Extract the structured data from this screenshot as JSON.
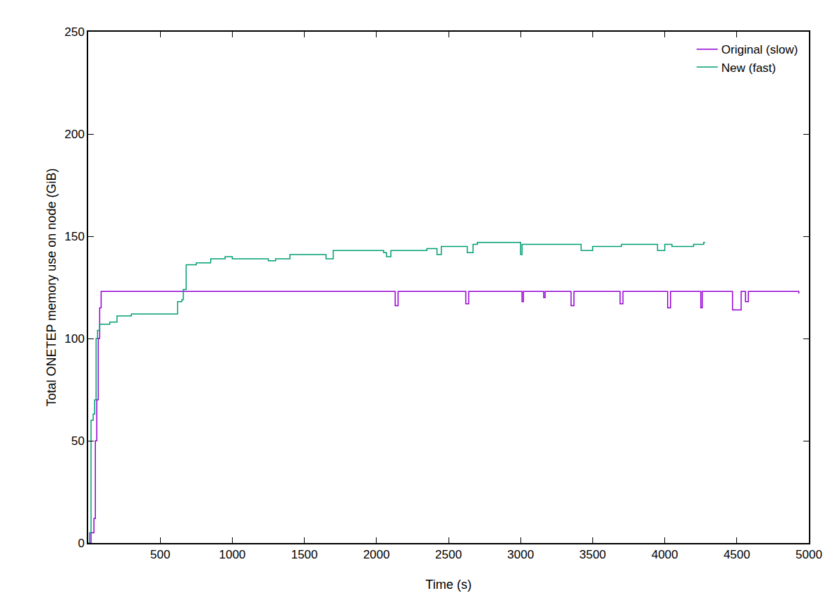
{
  "chart_data": {
    "type": "line",
    "x_label": "Time (s)",
    "y_label": "Total ONETEP memory use on node (GiB)",
    "xlim": [
      0,
      5000
    ],
    "xticks": [
      500,
      1000,
      1500,
      2000,
      2500,
      3000,
      3500,
      4000,
      4500,
      5000
    ],
    "ylim": [
      0,
      250
    ],
    "yticks": [
      0,
      50,
      100,
      150,
      200,
      250
    ],
    "grid": false,
    "legend": "top-right",
    "line_style": "steps",
    "series": [
      {
        "name": "Original (slow)",
        "color": "#9400d3",
        "x": [
          0,
          20,
          40,
          50,
          60,
          70,
          80,
          90,
          2120,
          2130,
          2150,
          2620,
          2640,
          3010,
          3020,
          3160,
          3170,
          3350,
          3370,
          3690,
          3710,
          4020,
          4040,
          4250,
          4260,
          4470,
          4530,
          4560,
          4580,
          4930
        ],
        "values": [
          0,
          5,
          12,
          50,
          70,
          100,
          115,
          123,
          123,
          116,
          123,
          117,
          123,
          118,
          123,
          120,
          123,
          116,
          123,
          117,
          123,
          115,
          123,
          115,
          123,
          114,
          123,
          118,
          123,
          122
        ]
      },
      {
        "name": "New (fast)",
        "color": "#009e73",
        "x": [
          0,
          10,
          20,
          35,
          45,
          55,
          65,
          80,
          150,
          200,
          300,
          600,
          620,
          650,
          660,
          680,
          750,
          850,
          950,
          1000,
          1250,
          1300,
          1400,
          1600,
          1650,
          1700,
          2050,
          2070,
          2100,
          2350,
          2420,
          2450,
          2600,
          2630,
          2670,
          2700,
          2950,
          3000,
          3010,
          3400,
          3420,
          3500,
          3700,
          3900,
          3950,
          4000,
          4050,
          4200,
          4270,
          4280
        ],
        "values": [
          0,
          5,
          60,
          63,
          70,
          100,
          104,
          107,
          108,
          111,
          112,
          112,
          118,
          119,
          124,
          136,
          137,
          139,
          140,
          139,
          138,
          139,
          141,
          141,
          139,
          143,
          142,
          140,
          143,
          144,
          141,
          145,
          145,
          142,
          146,
          147,
          147,
          141,
          146,
          146,
          143,
          145,
          146,
          146,
          143,
          146,
          145,
          146,
          147,
          147
        ]
      }
    ]
  }
}
